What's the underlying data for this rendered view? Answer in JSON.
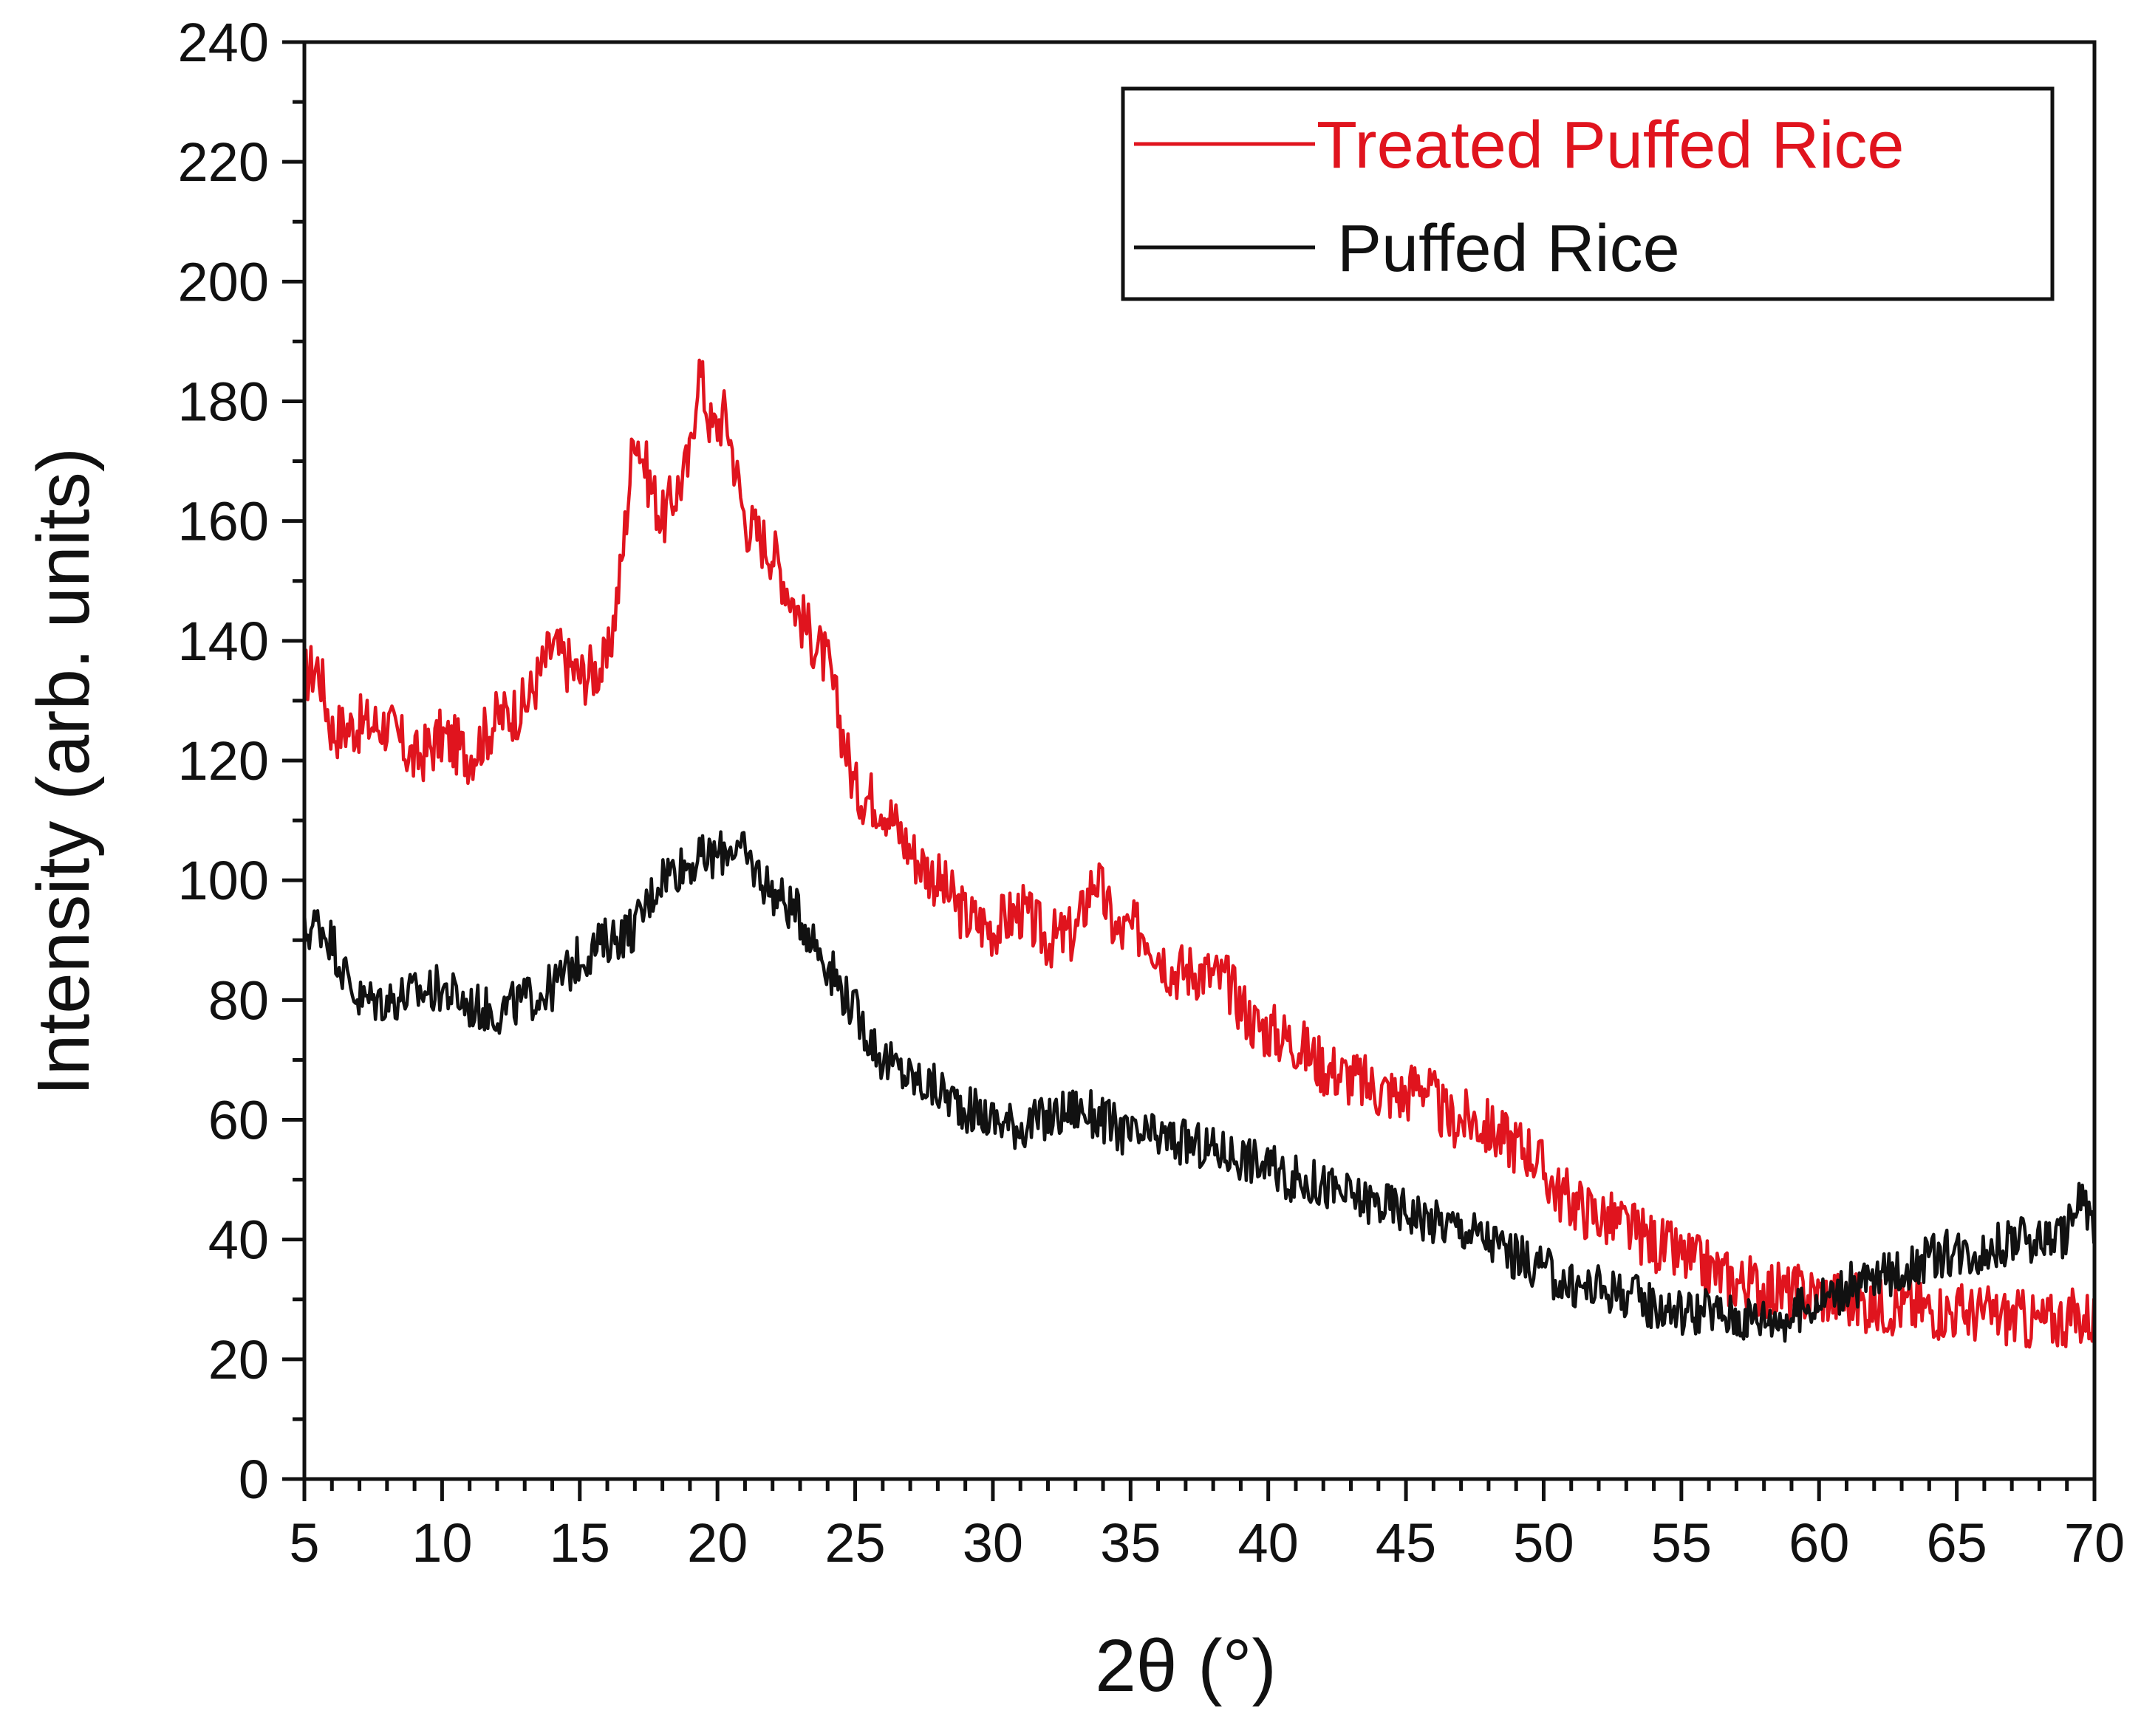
{
  "chart_data": {
    "type": "line",
    "title": "",
    "xlabel": "2θ (°)",
    "ylabel": "Intensity (arb. units)",
    "xlim": [
      5,
      70
    ],
    "ylim": [
      0,
      240
    ],
    "x_ticks": [
      5,
      10,
      15,
      20,
      25,
      30,
      35,
      40,
      45,
      50,
      55,
      60,
      65,
      70
    ],
    "y_ticks": [
      0,
      20,
      40,
      60,
      80,
      100,
      120,
      140,
      160,
      180,
      200,
      220,
      240
    ],
    "grid": false,
    "legend_position": "top-right",
    "series": [
      {
        "name": "Treated Puffed Rice",
        "color": "#e0141e",
        "noise": 5,
        "points": [
          [
            5,
            134
          ],
          [
            5.5,
            136
          ],
          [
            6,
            125
          ],
          [
            7,
            126
          ],
          [
            8,
            126
          ],
          [
            9,
            120
          ],
          [
            10,
            124
          ],
          [
            11,
            121
          ],
          [
            12,
            127
          ],
          [
            13,
            129
          ],
          [
            14,
            139
          ],
          [
            15,
            134
          ],
          [
            16,
            136
          ],
          [
            16.5,
            152
          ],
          [
            17,
            176
          ],
          [
            17.5,
            167
          ],
          [
            18,
            160
          ],
          [
            18.5,
            165
          ],
          [
            19,
            170
          ],
          [
            19.3,
            186
          ],
          [
            19.8,
            175
          ],
          [
            20.3,
            178
          ],
          [
            21,
            160
          ],
          [
            22,
            155
          ],
          [
            23,
            144
          ],
          [
            24,
            136
          ],
          [
            25,
            115
          ],
          [
            26,
            113
          ],
          [
            27,
            105
          ],
          [
            28,
            100
          ],
          [
            29,
            94
          ],
          [
            30,
            92
          ],
          [
            31,
            95
          ],
          [
            32,
            90
          ],
          [
            33,
            91
          ],
          [
            33.7,
            101
          ],
          [
            34.5,
            91
          ],
          [
            35.5,
            92
          ],
          [
            36.5,
            85
          ],
          [
            37.5,
            85
          ],
          [
            38.5,
            83
          ],
          [
            39.5,
            76
          ],
          [
            41,
            73
          ],
          [
            42,
            69
          ],
          [
            43,
            67
          ],
          [
            44,
            65
          ],
          [
            45,
            64
          ],
          [
            45.5,
            67
          ],
          [
            46.5,
            60
          ],
          [
            47.5,
            60
          ],
          [
            48.5,
            57
          ],
          [
            49.5,
            55
          ],
          [
            50.5,
            48
          ],
          [
            51.5,
            45
          ],
          [
            53,
            42
          ],
          [
            55,
            37
          ],
          [
            57,
            33
          ],
          [
            58,
            32
          ],
          [
            59,
            31
          ],
          [
            60,
            31
          ],
          [
            61,
            30
          ],
          [
            62,
            29
          ],
          [
            63,
            29
          ],
          [
            65,
            28
          ],
          [
            67,
            27
          ],
          [
            68,
            26
          ],
          [
            69,
            27
          ],
          [
            70,
            27
          ]
        ]
      },
      {
        "name": "Puffed Rice",
        "color": "#111111",
        "noise": 4,
        "points": [
          [
            5,
            91
          ],
          [
            5.5,
            93
          ],
          [
            6,
            90
          ],
          [
            6.5,
            84
          ],
          [
            7,
            80
          ],
          [
            8,
            80
          ],
          [
            9,
            81
          ],
          [
            10,
            82
          ],
          [
            11,
            79
          ],
          [
            12,
            78
          ],
          [
            13,
            80
          ],
          [
            14,
            82
          ],
          [
            15,
            87
          ],
          [
            16,
            90
          ],
          [
            17,
            92
          ],
          [
            18,
            101
          ],
          [
            19,
            103
          ],
          [
            20,
            104
          ],
          [
            20.5,
            106
          ],
          [
            21,
            104
          ],
          [
            22,
            98
          ],
          [
            23,
            94
          ],
          [
            24,
            86
          ],
          [
            25,
            78
          ],
          [
            26,
            70
          ],
          [
            27,
            67
          ],
          [
            28,
            65
          ],
          [
            29,
            62
          ],
          [
            30,
            60
          ],
          [
            31,
            59
          ],
          [
            32,
            60
          ],
          [
            33,
            62
          ],
          [
            34,
            60
          ],
          [
            35,
            57
          ],
          [
            36,
            57
          ],
          [
            37,
            56
          ],
          [
            38,
            55
          ],
          [
            39,
            54
          ],
          [
            40,
            52
          ],
          [
            41,
            50
          ],
          [
            42,
            49
          ],
          [
            43,
            47
          ],
          [
            44,
            46
          ],
          [
            45,
            45
          ],
          [
            46,
            43
          ],
          [
            47,
            42
          ],
          [
            48,
            40
          ],
          [
            49,
            37
          ],
          [
            50,
            35
          ],
          [
            51,
            32
          ],
          [
            52,
            32
          ],
          [
            53,
            31
          ],
          [
            54,
            29
          ],
          [
            55,
            28
          ],
          [
            56,
            28
          ],
          [
            57,
            27
          ],
          [
            58,
            27
          ],
          [
            59,
            27
          ],
          [
            60,
            30
          ],
          [
            61,
            32
          ],
          [
            62,
            33
          ],
          [
            63,
            35
          ],
          [
            64,
            37
          ],
          [
            65,
            38
          ],
          [
            66,
            38
          ],
          [
            67,
            40
          ],
          [
            68,
            40
          ],
          [
            69,
            41
          ],
          [
            69.5,
            47
          ],
          [
            70,
            42
          ]
        ]
      }
    ]
  }
}
